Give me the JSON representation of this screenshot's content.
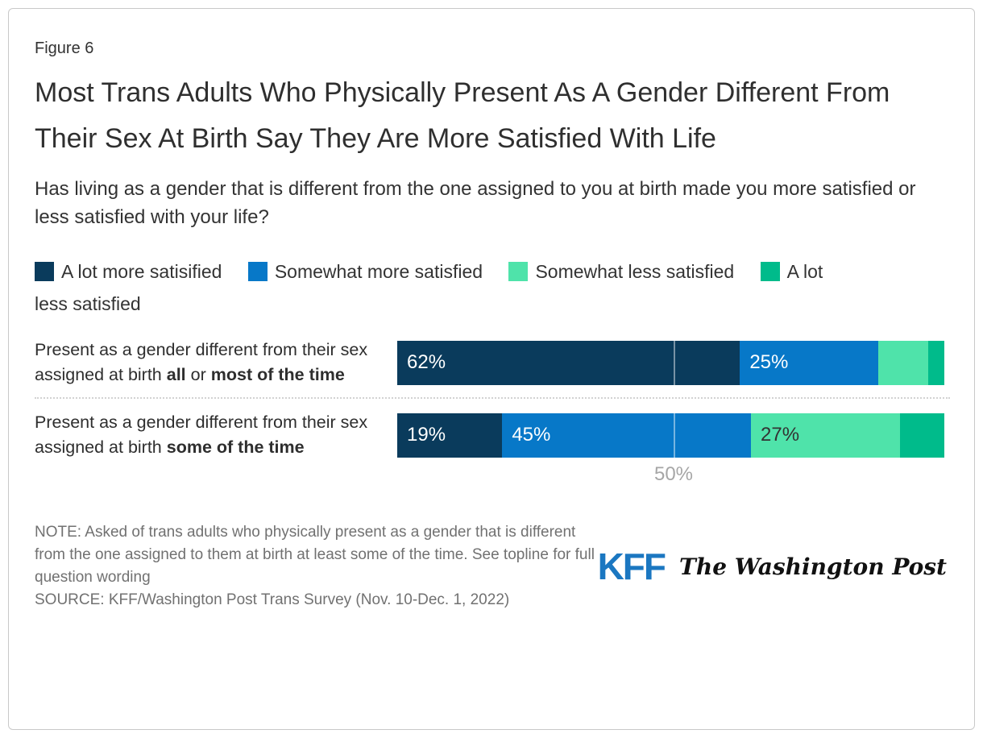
{
  "figure_label": "Figure 6",
  "title": "Most Trans Adults Who Physically Present As A Gender Different From Their Sex At Birth Say They Are More Satisfied With Life",
  "subtitle": "Has living as a gender that is different from the one assigned to you at birth made you more satisfied or less satisfied with your life?",
  "legend": {
    "items": [
      {
        "label": "A lot more satisified"
      },
      {
        "label": "Somewhat more satisfied"
      },
      {
        "label": "Somewhat less satisfied"
      },
      {
        "label_line1": "A lot",
        "label_line2": "less satisfied"
      }
    ]
  },
  "chart_data": {
    "type": "bar",
    "orientation": "horizontal_stacked",
    "xlim": [
      0,
      100
    ],
    "grid": "single-line",
    "gridline": {
      "value": 50,
      "label": "50%"
    },
    "legend_position": "top",
    "series_names": [
      "A lot more satisified",
      "Somewhat more satisfied",
      "Somewhat less satisfied",
      "A lot less satisfied"
    ],
    "series_colors": [
      "#0a3b5c",
      "#0778c8",
      "#4fe3aa",
      "#00bb8b"
    ],
    "rows": [
      {
        "category": "Present as a gender different from their sex assigned at birth all or most of the time",
        "label_parts": [
          {
            "text": "Present as a gender different from their sex assigned at birth "
          },
          {
            "text": "all"
          },
          {
            "text": " or "
          },
          {
            "text": "most of the time"
          }
        ],
        "values": [
          62,
          25,
          9,
          3
        ],
        "seg_labels": [
          "62%",
          "25%",
          "",
          ""
        ],
        "seg_label_styles": [
          "light",
          "light",
          "",
          ""
        ]
      },
      {
        "category": "Present as a gender different from their sex assigned at birth some of the time",
        "label_parts": [
          {
            "text": "Present as a gender different from their sex assigned at birth "
          },
          {
            "text": "some of the time"
          }
        ],
        "values": [
          19,
          45,
          27,
          8
        ],
        "seg_labels": [
          "19%",
          "45%",
          "27%",
          ""
        ],
        "seg_label_styles": [
          "light",
          "light",
          "dark",
          ""
        ]
      }
    ]
  },
  "footer": {
    "note": "NOTE: Asked of trans adults who physically present as a gender that is different from the one assigned to them at birth at least some of the time. See topline for full question wording",
    "source": "SOURCE: KFF/Washington Post Trans Survey (Nov. 10-Dec. 1, 2022)",
    "logos": {
      "kff": "KFF",
      "washington_post": "The Washington Post"
    }
  },
  "brand": {
    "kff_blue": "#1b77c1"
  }
}
